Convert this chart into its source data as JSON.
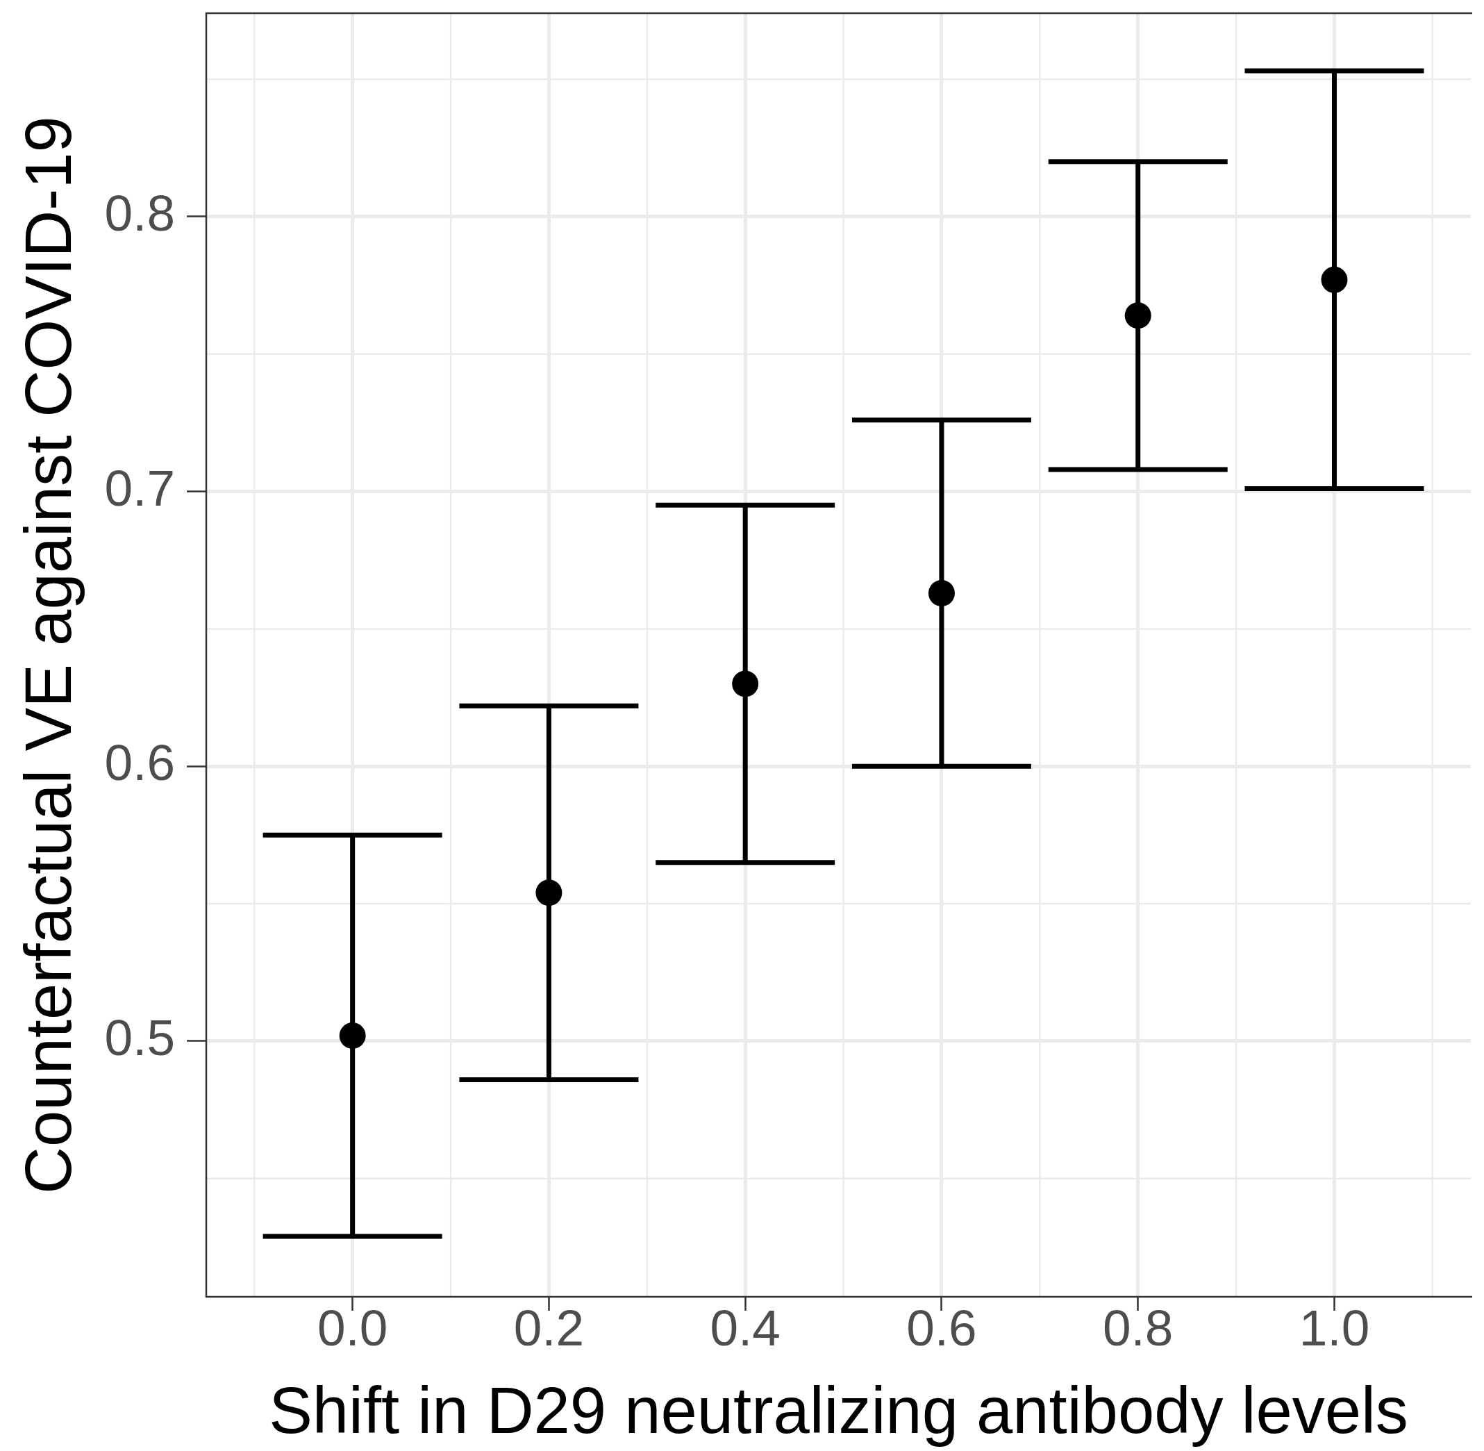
{
  "chart_data": {
    "type": "scatter",
    "xlabel": "Shift in D29 neutralizing antibody levels",
    "ylabel": "Counterfactual VE against COVID-19",
    "x": [
      0,
      0.2,
      0.4,
      0.6,
      0.8,
      1.0
    ],
    "values": [
      0.502,
      0.554,
      0.63,
      0.663,
      0.764,
      0.777
    ],
    "errors": [
      0.073,
      0.068,
      0.065,
      0.063,
      0.056,
      0.076
    ],
    "color": "#000000",
    "marker": "circle",
    "xlim": [
      -0.149,
      1.139
    ],
    "ylim": [
      0.407,
      0.874
    ],
    "xticks": [
      {
        "value": 0,
        "label": "0.0"
      },
      0.2,
      0.4,
      0.6,
      0.8,
      {
        "value": 1,
        "label": "1.0"
      }
    ],
    "yticks": [
      0.5,
      0.6,
      0.7,
      0.8
    ],
    "grid": true
  }
}
